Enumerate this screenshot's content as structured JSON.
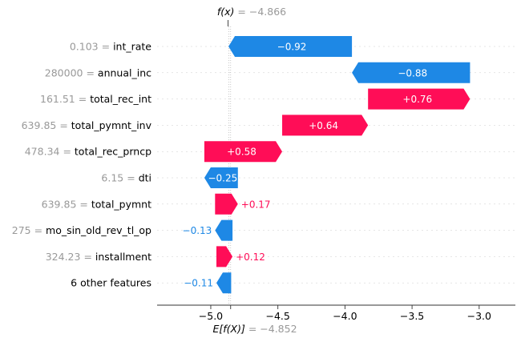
{
  "chart_data": {
    "type": "waterfall",
    "top_label": {
      "prefix": "f(x)",
      "suffix": " = −4.866"
    },
    "bottom_label": {
      "prefix": "E[f(X)]",
      "suffix": " = −4.852"
    },
    "fx": -4.866,
    "expected_value": -4.852,
    "xlim": [
      -5.4,
      -2.73
    ],
    "x_ticks": [
      {
        "value": -5.0,
        "label": "−5.0"
      },
      {
        "value": -4.5,
        "label": "−4.5"
      },
      {
        "value": -4.0,
        "label": "−4.0"
      },
      {
        "value": -3.5,
        "label": "−3.5"
      },
      {
        "value": -3.0,
        "label": "−3.0"
      }
    ],
    "features": [
      {
        "value_text": "0.103",
        "name": "int_rate",
        "start": -4.868,
        "end": -3.948,
        "shap": -0.92,
        "label": "−0.92",
        "label_inside": true
      },
      {
        "value_text": "280000",
        "name": "annual_inc",
        "start": -3.948,
        "end": -3.068,
        "shap": -0.88,
        "label": "−0.88",
        "label_inside": true
      },
      {
        "value_text": "161.51",
        "name": "total_rec_int",
        "start": -3.068,
        "end": -3.828,
        "shap": 0.76,
        "label": "+0.76",
        "label_inside": true
      },
      {
        "value_text": "639.85",
        "name": "total_pymnt_inv",
        "start": -3.828,
        "end": -4.468,
        "shap": 0.64,
        "label": "+0.64",
        "label_inside": true
      },
      {
        "value_text": "478.34",
        "name": "total_rec_prncp",
        "start": -4.468,
        "end": -5.048,
        "shap": 0.58,
        "label": "+0.58",
        "label_inside": true
      },
      {
        "value_text": "6.15",
        "name": "dti",
        "start": -5.048,
        "end": -4.798,
        "shap": -0.25,
        "label": "−0.25",
        "label_inside": true
      },
      {
        "value_text": "639.85",
        "name": "total_pymnt",
        "start": -4.798,
        "end": -4.968,
        "shap": 0.17,
        "label": "+0.17",
        "label_inside": false
      },
      {
        "value_text": "275",
        "name": "mo_sin_old_rev_tl_op",
        "start": -4.968,
        "end": -4.838,
        "shap": -0.13,
        "label": "−0.13",
        "label_inside": false
      },
      {
        "value_text": "324.23",
        "name": "installment",
        "start": -4.838,
        "end": -4.958,
        "shap": 0.12,
        "label": "+0.12",
        "label_inside": false
      },
      {
        "value_text": "",
        "name": "6 other features",
        "start": -4.958,
        "end": -4.848,
        "shap": -0.11,
        "label": "−0.11",
        "label_inside": false
      }
    ],
    "colors": {
      "positive": "#ff0d57",
      "negative": "#1e88e5",
      "axis": "#333333",
      "muted": "#999999"
    }
  }
}
